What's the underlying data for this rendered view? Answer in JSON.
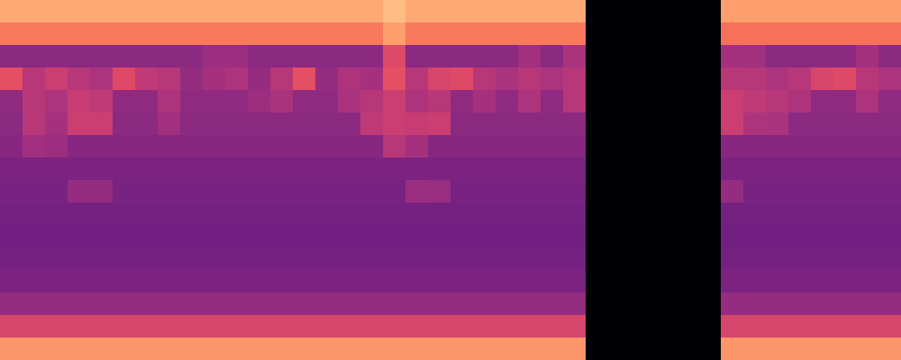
{
  "chart_data": {
    "type": "heatmap",
    "color": "magma",
    "tick_labels": false,
    "grid": false,
    "value_range": [
      0,
      1
    ],
    "cells": [
      [
        0.82,
        0.82,
        0.82,
        0.82,
        0.82,
        0.82,
        0.82,
        0.82,
        0.82,
        0.82,
        0.82,
        0.82,
        0.82,
        0.82,
        0.82,
        0.82,
        0.82,
        0.86,
        0.82,
        0.82,
        0.82,
        0.82,
        0.82,
        0.82,
        0.82,
        0.82,
        0,
        0,
        0,
        0,
        0,
        0,
        0.8,
        0.8,
        0.8,
        0.8,
        0.8,
        0.8,
        0.8,
        0.8
      ],
      [
        0.72,
        0.72,
        0.72,
        0.72,
        0.72,
        0.72,
        0.72,
        0.72,
        0.72,
        0.72,
        0.72,
        0.72,
        0.72,
        0.72,
        0.72,
        0.72,
        0.72,
        0.8,
        0.72,
        0.72,
        0.72,
        0.72,
        0.72,
        0.72,
        0.72,
        0.72,
        0,
        0,
        0,
        0,
        0,
        0,
        0.7,
        0.7,
        0.7,
        0.7,
        0.7,
        0.7,
        0.7,
        0.7
      ],
      [
        0.4,
        0.4,
        0.4,
        0.4,
        0.4,
        0.4,
        0.4,
        0.4,
        0.4,
        0.44,
        0.44,
        0.4,
        0.4,
        0.4,
        0.4,
        0.4,
        0.4,
        0.6,
        0.4,
        0.4,
        0.4,
        0.4,
        0.4,
        0.45,
        0.4,
        0.47,
        0,
        0,
        0,
        0,
        0,
        0,
        0.46,
        0.45,
        0.4,
        0.4,
        0.4,
        0.4,
        0.46,
        0.4
      ],
      [
        0.62,
        0.5,
        0.55,
        0.5,
        0.48,
        0.6,
        0.52,
        0.5,
        0.42,
        0.46,
        0.48,
        0.42,
        0.5,
        0.62,
        0.42,
        0.48,
        0.46,
        0.62,
        0.5,
        0.58,
        0.6,
        0.5,
        0.47,
        0.5,
        0.48,
        0.5,
        0,
        0,
        0,
        0,
        0,
        0,
        0.5,
        0.5,
        0.48,
        0.5,
        0.58,
        0.6,
        0.5,
        0.48
      ],
      [
        0.41,
        0.5,
        0.48,
        0.54,
        0.52,
        0.41,
        0.41,
        0.48,
        0.41,
        0.41,
        0.41,
        0.44,
        0.47,
        0.41,
        0.41,
        0.47,
        0.5,
        0.55,
        0.48,
        0.5,
        0.41,
        0.46,
        0.41,
        0.48,
        0.41,
        0.5,
        0,
        0,
        0,
        0,
        0,
        0,
        0.55,
        0.52,
        0.5,
        0.48,
        0.41,
        0.41,
        0.48,
        0.41
      ],
      [
        0.4,
        0.5,
        0.46,
        0.55,
        0.55,
        0.4,
        0.4,
        0.45,
        0.4,
        0.4,
        0.4,
        0.4,
        0.4,
        0.4,
        0.4,
        0.4,
        0.52,
        0.55,
        0.54,
        0.55,
        0.4,
        0.4,
        0.4,
        0.4,
        0.4,
        0.4,
        0,
        0,
        0,
        0,
        0,
        0,
        0.55,
        0.48,
        0.47,
        0.4,
        0.4,
        0.4,
        0.4,
        0.4
      ],
      [
        0.39,
        0.45,
        0.44,
        0.39,
        0.39,
        0.39,
        0.39,
        0.39,
        0.39,
        0.39,
        0.39,
        0.39,
        0.39,
        0.39,
        0.39,
        0.39,
        0.39,
        0.5,
        0.46,
        0.39,
        0.39,
        0.39,
        0.39,
        0.39,
        0.39,
        0.39,
        0,
        0,
        0,
        0,
        0,
        0,
        0.39,
        0.39,
        0.39,
        0.39,
        0.39,
        0.39,
        0.39,
        0.39
      ],
      [
        0.36,
        0.36,
        0.36,
        0.36,
        0.36,
        0.36,
        0.36,
        0.36,
        0.36,
        0.36,
        0.36,
        0.36,
        0.36,
        0.36,
        0.36,
        0.36,
        0.36,
        0.36,
        0.36,
        0.36,
        0.36,
        0.36,
        0.36,
        0.36,
        0.36,
        0.36,
        0,
        0,
        0,
        0,
        0,
        0,
        0.36,
        0.36,
        0.36,
        0.36,
        0.36,
        0.36,
        0.36,
        0.36
      ],
      [
        0.35,
        0.35,
        0.35,
        0.42,
        0.42,
        0.35,
        0.35,
        0.35,
        0.35,
        0.35,
        0.35,
        0.35,
        0.35,
        0.35,
        0.35,
        0.35,
        0.35,
        0.35,
        0.44,
        0.43,
        0.35,
        0.35,
        0.35,
        0.35,
        0.35,
        0.35,
        0,
        0,
        0,
        0,
        0,
        0,
        0.42,
        0.35,
        0.35,
        0.35,
        0.35,
        0.35,
        0.35,
        0.35
      ],
      [
        0.34,
        0.34,
        0.34,
        0.34,
        0.34,
        0.34,
        0.34,
        0.34,
        0.34,
        0.34,
        0.34,
        0.34,
        0.34,
        0.34,
        0.34,
        0.34,
        0.34,
        0.34,
        0.34,
        0.34,
        0.34,
        0.34,
        0.34,
        0.34,
        0.34,
        0.34,
        0,
        0,
        0,
        0,
        0,
        0,
        0.34,
        0.34,
        0.34,
        0.34,
        0.34,
        0.34,
        0.34,
        0.34
      ],
      [
        0.33,
        0.33,
        0.33,
        0.33,
        0.33,
        0.33,
        0.33,
        0.33,
        0.33,
        0.33,
        0.33,
        0.33,
        0.33,
        0.33,
        0.33,
        0.33,
        0.33,
        0.33,
        0.33,
        0.33,
        0.33,
        0.33,
        0.33,
        0.33,
        0.33,
        0.33,
        0,
        0,
        0,
        0,
        0,
        0,
        0.33,
        0.33,
        0.33,
        0.33,
        0.33,
        0.33,
        0.33,
        0.33
      ],
      [
        0.34,
        0.34,
        0.34,
        0.34,
        0.34,
        0.34,
        0.34,
        0.34,
        0.34,
        0.34,
        0.34,
        0.34,
        0.34,
        0.34,
        0.34,
        0.34,
        0.34,
        0.34,
        0.34,
        0.34,
        0.34,
        0.34,
        0.34,
        0.34,
        0.34,
        0.34,
        0,
        0,
        0,
        0,
        0,
        0,
        0.34,
        0.34,
        0.34,
        0.34,
        0.34,
        0.34,
        0.34,
        0.34
      ],
      [
        0.36,
        0.36,
        0.36,
        0.36,
        0.36,
        0.36,
        0.36,
        0.36,
        0.36,
        0.36,
        0.36,
        0.36,
        0.36,
        0.36,
        0.36,
        0.36,
        0.36,
        0.36,
        0.36,
        0.36,
        0.36,
        0.36,
        0.36,
        0.36,
        0.36,
        0.36,
        0,
        0,
        0,
        0,
        0,
        0,
        0.36,
        0.36,
        0.36,
        0.36,
        0.36,
        0.36,
        0.36,
        0.36
      ],
      [
        0.42,
        0.42,
        0.42,
        0.42,
        0.42,
        0.42,
        0.42,
        0.42,
        0.42,
        0.42,
        0.42,
        0.42,
        0.42,
        0.42,
        0.42,
        0.42,
        0.42,
        0.42,
        0.42,
        0.42,
        0.42,
        0.42,
        0.42,
        0.42,
        0.42,
        0.42,
        0,
        0,
        0,
        0,
        0,
        0,
        0.42,
        0.42,
        0.42,
        0.42,
        0.42,
        0.42,
        0.42,
        0.42
      ],
      [
        0.58,
        0.58,
        0.58,
        0.58,
        0.58,
        0.58,
        0.58,
        0.58,
        0.58,
        0.58,
        0.58,
        0.58,
        0.58,
        0.58,
        0.58,
        0.58,
        0.58,
        0.58,
        0.58,
        0.58,
        0.58,
        0.58,
        0.58,
        0.58,
        0.58,
        0.58,
        0,
        0,
        0,
        0,
        0,
        0,
        0.58,
        0.58,
        0.58,
        0.58,
        0.58,
        0.58,
        0.58,
        0.58
      ],
      [
        0.78,
        0.78,
        0.78,
        0.78,
        0.78,
        0.78,
        0.78,
        0.78,
        0.78,
        0.78,
        0.78,
        0.78,
        0.78,
        0.78,
        0.78,
        0.78,
        0.78,
        0.78,
        0.78,
        0.78,
        0.78,
        0.78,
        0.78,
        0.78,
        0.78,
        0.78,
        0,
        0,
        0,
        0,
        0,
        0,
        0.78,
        0.78,
        0.78,
        0.78,
        0.78,
        0.78,
        0.78,
        0.78
      ]
    ]
  }
}
